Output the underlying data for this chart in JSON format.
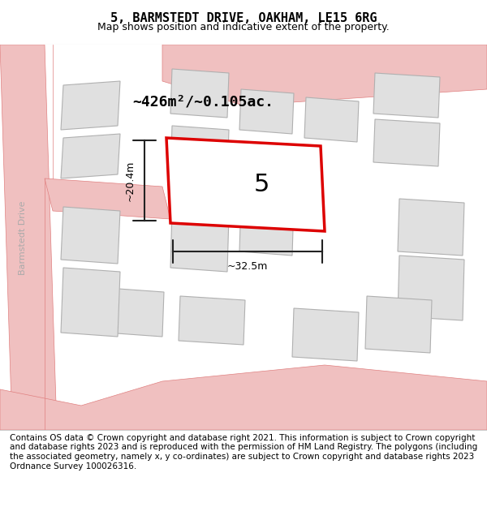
{
  "title": "5, BARMSTEDT DRIVE, OAKHAM, LE15 6RG",
  "subtitle": "Map shows position and indicative extent of the property.",
  "footer": "Contains OS data © Crown copyright and database right 2021. This information is subject to Crown copyright and database rights 2023 and is reproduced with the permission of HM Land Registry. The polygons (including the associated geometry, namely x, y co-ordinates) are subject to Crown copyright and database rights 2023 Ordnance Survey 100026316.",
  "area_label": "~426m²/~0.105ac.",
  "width_label": "~32.5m",
  "height_label": "~20.4m",
  "plot_number": "5",
  "map_bg": "#f5f5f5",
  "header_bg": "#ffffff",
  "footer_bg": "#ffffff",
  "road_color": "#f0c0c0",
  "road_outline": "#e08080",
  "building_fill": "#e0e0e0",
  "building_outline": "#b0b0b0",
  "plot_outline_color": "#dd0000",
  "plot_fill": "#ffffff",
  "dim_line_color": "#222222",
  "street_label": "Barmstedt Drive",
  "title_fontsize": 11,
  "subtitle_fontsize": 9,
  "footer_fontsize": 7.5
}
